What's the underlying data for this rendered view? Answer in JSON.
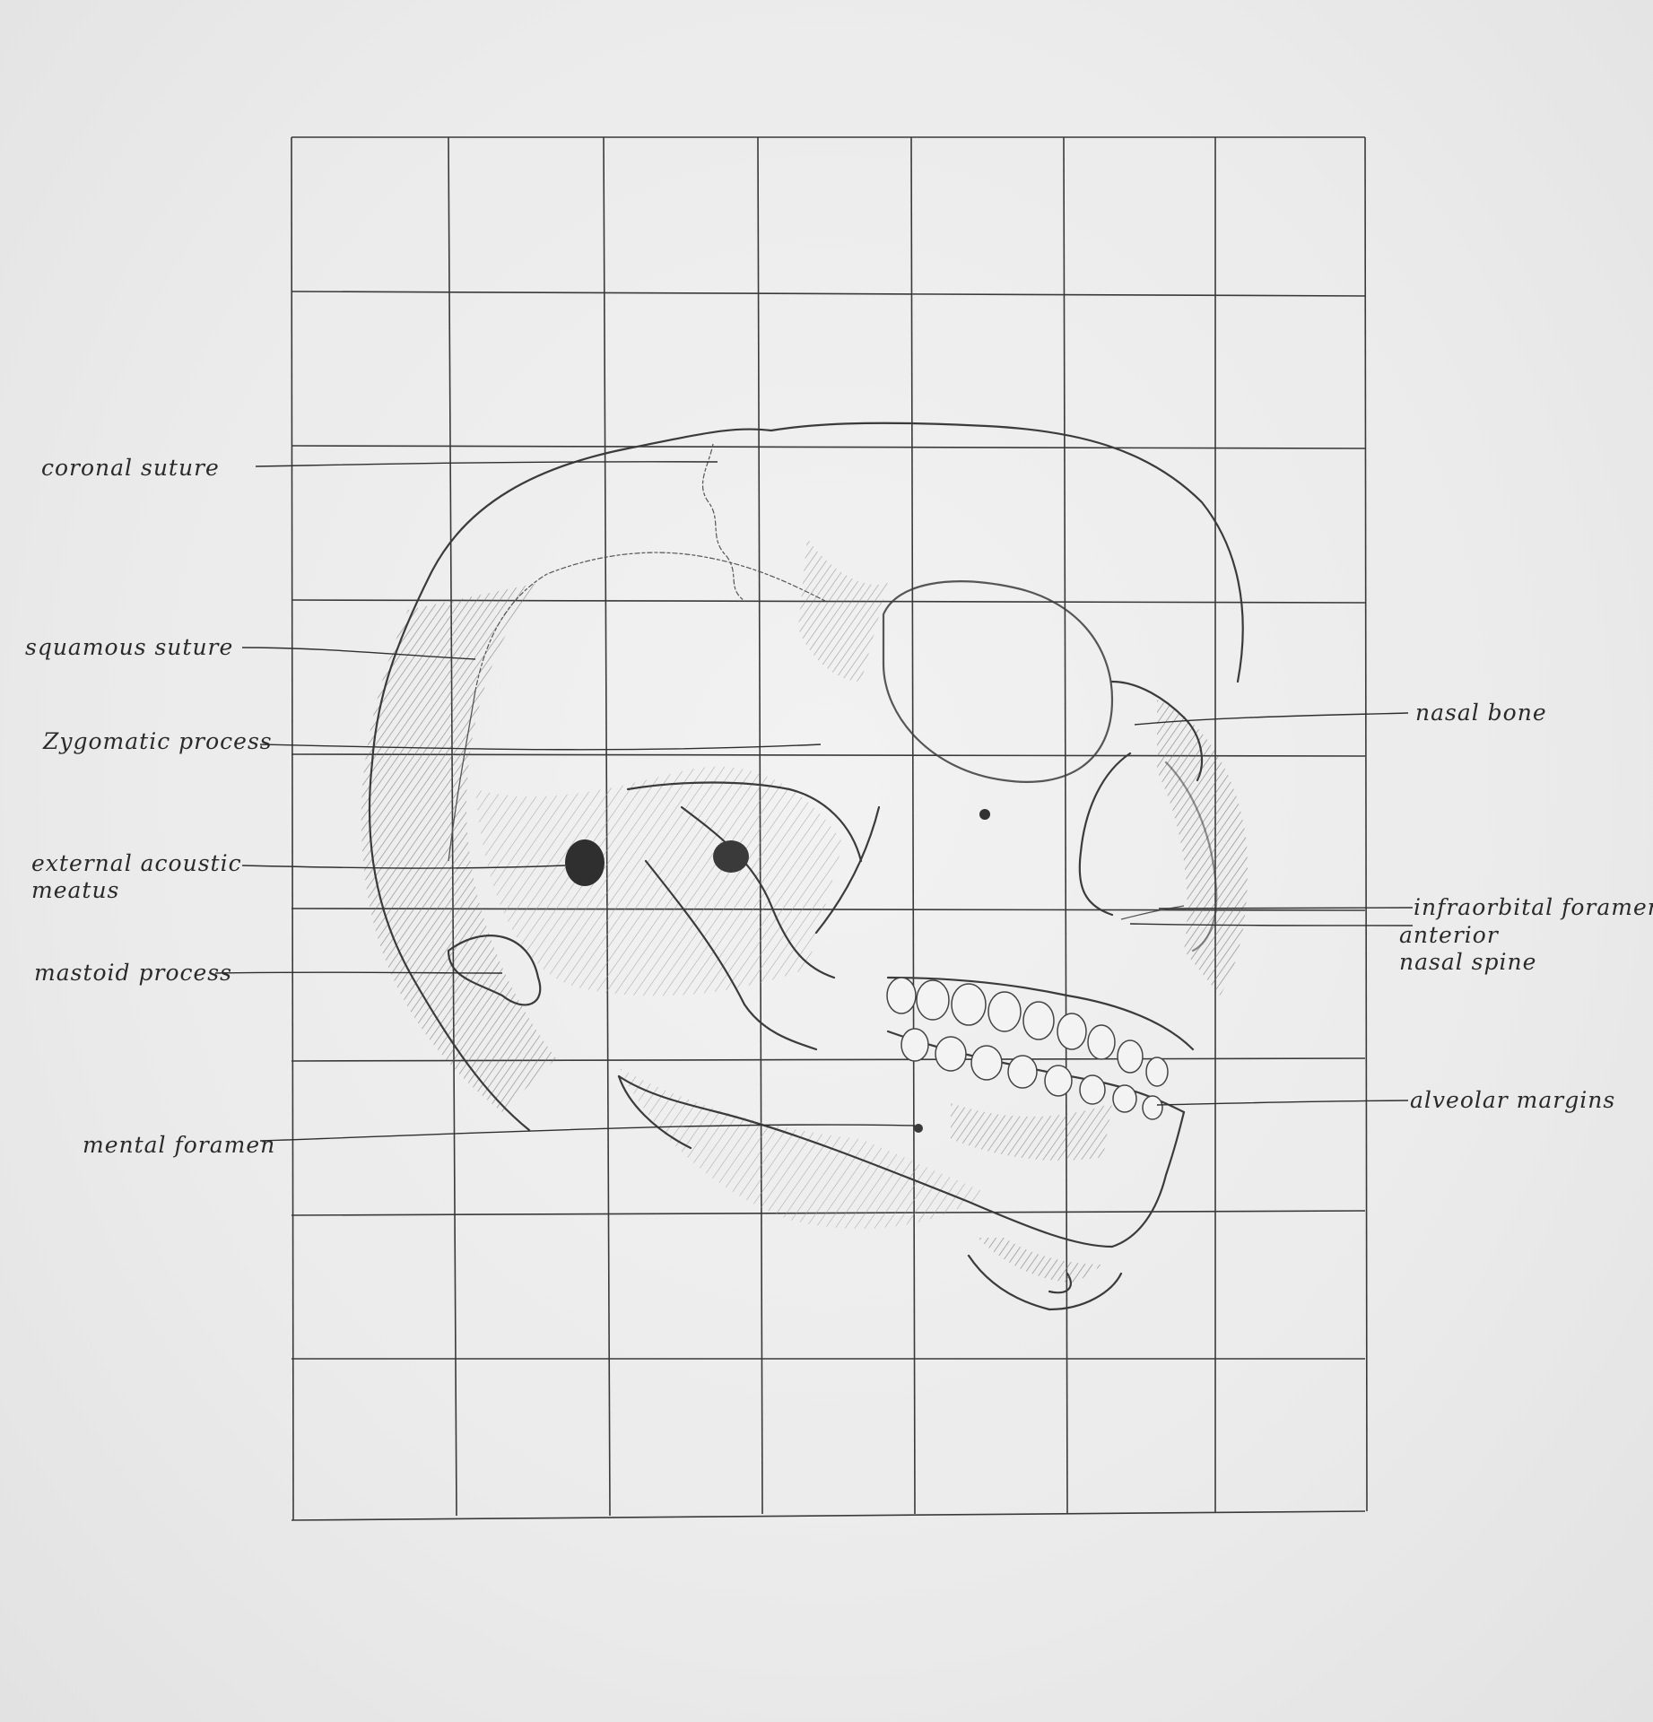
{
  "title": "",
  "labels": {
    "coronal_suture": "coronal suture",
    "squamous_suture": "squamous suture",
    "zygomatic_process": "Zygomatic process",
    "external_acoustic_meatus": "external acoustic\nmeatus",
    "mastoid_process": "mastoid process",
    "mental_foramen": "mental foramen",
    "nasal_bone": "nasal bone",
    "infraorbital_foramen": "infraorbital foramen",
    "anterior_nasal_spine": "anterior\nnasal spine",
    "alveolar_margins": "alveolar margins"
  },
  "style": {
    "paper_color": "#ebebeb",
    "graphite_color": "#3a3a3a",
    "shading_color": "#8a8a8a"
  }
}
